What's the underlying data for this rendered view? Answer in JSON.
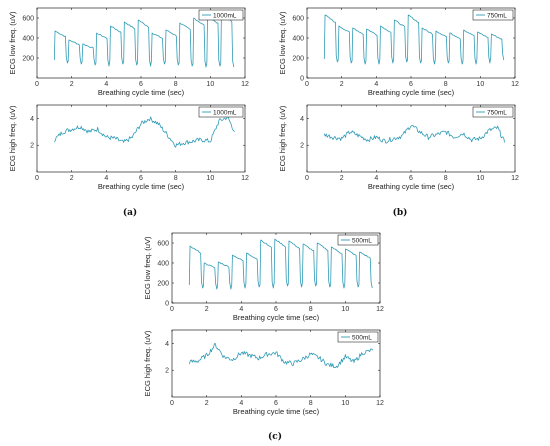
{
  "panels": [
    {
      "label": "(a)"
    },
    {
      "label": "(b)"
    },
    {
      "label": "(c)"
    }
  ],
  "chart_data": [
    {
      "type": "line",
      "panel": "(a)",
      "position": "top",
      "xlabel": "Breathing cycle time (sec)",
      "ylabel": "ECG low freq. (uV)",
      "xlim": [
        0,
        12
      ],
      "ylim": [
        0,
        700
      ],
      "xticks": [
        0,
        2,
        4,
        6,
        8,
        10,
        12
      ],
      "yticks": [
        200,
        400,
        600
      ],
      "legend": "top-right",
      "series": [
        {
          "name": "1000mL",
          "color": "#2f9bb6",
          "signal": "low",
          "x_start": 1.0,
          "x_end": 11.4,
          "cycle_peaks": [
            470,
            380,
            340,
            450,
            520,
            560,
            580,
            450,
            480,
            550,
            600,
            620,
            640
          ],
          "cycle_troughs": [
            150,
            140,
            130,
            120,
            140,
            130,
            120,
            140,
            130,
            120,
            110,
            120,
            110
          ]
        }
      ]
    },
    {
      "type": "line",
      "panel": "(a)",
      "position": "bottom",
      "xlabel": "Breathing cycle time (sec)",
      "ylabel": "ECG high freq. (uV)",
      "xlim": [
        0,
        12
      ],
      "ylim": [
        0,
        5
      ],
      "xticks": [
        0,
        2,
        4,
        6,
        8,
        10,
        12
      ],
      "yticks": [
        2,
        4
      ],
      "legend": "top-right",
      "series": [
        {
          "name": "1000mL",
          "color": "#2f9bb6",
          "signal": "high",
          "x_start": 1.0,
          "x_end": 11.4,
          "x_anchor": [
            1.0,
            1.5,
            2.0,
            2.5,
            3.0,
            3.5,
            4.0,
            4.5,
            5.0,
            5.5,
            6.0,
            6.5,
            7.0,
            7.5,
            8.0,
            8.5,
            9.0,
            9.5,
            10.0,
            10.5,
            11.0,
            11.4
          ],
          "y_anchor": [
            2.4,
            3.0,
            3.2,
            3.4,
            3.0,
            3.2,
            2.6,
            2.5,
            2.2,
            2.6,
            3.6,
            4.0,
            3.6,
            2.8,
            2.0,
            2.2,
            2.3,
            2.4,
            2.3,
            3.8,
            4.1,
            3.0
          ]
        }
      ]
    },
    {
      "type": "line",
      "panel": "(b)",
      "position": "top",
      "xlabel": "Breathing cycle time (sec)",
      "ylabel": "ECG low freq. (uV)",
      "xlim": [
        0,
        12
      ],
      "ylim": [
        0,
        700
      ],
      "xticks": [
        0,
        2,
        4,
        6,
        8,
        10,
        12
      ],
      "yticks": [
        0,
        200,
        400,
        600
      ],
      "legend": "top-right",
      "series": [
        {
          "name": "750mL",
          "color": "#2f9bb6",
          "signal": "low",
          "x_start": 1.0,
          "x_end": 11.4,
          "cycle_peaks": [
            630,
            520,
            500,
            490,
            520,
            580,
            630,
            500,
            470,
            450,
            480,
            460,
            440
          ],
          "cycle_troughs": [
            160,
            150,
            140,
            140,
            150,
            160,
            150,
            140,
            150,
            140,
            140,
            150,
            180
          ]
        }
      ]
    },
    {
      "type": "line",
      "panel": "(b)",
      "position": "bottom",
      "xlabel": "Breathing cycle time (sec)",
      "ylabel": "ECG high freq. (uV)",
      "xlim": [
        0,
        12
      ],
      "ylim": [
        0,
        5
      ],
      "xticks": [
        0,
        2,
        4,
        6,
        8,
        10,
        12
      ],
      "yticks": [
        2,
        4
      ],
      "legend": "top-right",
      "series": [
        {
          "name": "750mL",
          "color": "#2f9bb6",
          "signal": "high",
          "x_start": 1.0,
          "x_end": 11.4,
          "x_anchor": [
            1.0,
            1.5,
            2.0,
            2.5,
            3.0,
            3.5,
            4.0,
            4.5,
            5.0,
            5.5,
            6.0,
            6.5,
            7.0,
            7.5,
            8.0,
            8.5,
            9.0,
            9.5,
            10.0,
            10.5,
            11.0,
            11.4
          ],
          "y_anchor": [
            2.8,
            2.6,
            2.5,
            3.0,
            2.7,
            2.4,
            2.6,
            2.3,
            2.5,
            2.7,
            3.5,
            3.0,
            2.6,
            2.8,
            3.0,
            2.6,
            2.9,
            2.4,
            2.5,
            3.1,
            3.3,
            2.2
          ]
        }
      ]
    },
    {
      "type": "line",
      "panel": "(c)",
      "position": "top",
      "xlabel": "Breathing cycle time (sec)",
      "ylabel": "ECG low freq. (uV)",
      "xlim": [
        0,
        12
      ],
      "ylim": [
        0,
        700
      ],
      "xticks": [
        0,
        2,
        4,
        6,
        8,
        10,
        12
      ],
      "yticks": [
        0,
        200,
        400,
        600
      ],
      "legend": "top-right",
      "series": [
        {
          "name": "500mL",
          "color": "#2f9bb6",
          "signal": "low",
          "x_start": 1.0,
          "x_end": 11.6,
          "cycle_peaks": [
            570,
            400,
            410,
            480,
            500,
            630,
            640,
            620,
            590,
            600,
            560,
            540,
            510
          ],
          "cycle_troughs": [
            150,
            140,
            140,
            150,
            160,
            150,
            170,
            160,
            170,
            160,
            150,
            160,
            150
          ]
        }
      ]
    },
    {
      "type": "line",
      "panel": "(c)",
      "position": "bottom",
      "xlabel": "Breathing cycle time (sec)",
      "ylabel": "ECG high freq. (uV)",
      "xlim": [
        0,
        12
      ],
      "ylim": [
        0,
        5
      ],
      "xticks": [
        0,
        2,
        4,
        6,
        8,
        10,
        12
      ],
      "yticks": [
        2,
        4
      ],
      "legend": "top-right",
      "series": [
        {
          "name": "500mL",
          "color": "#2f9bb6",
          "signal": "high",
          "x_start": 1.0,
          "x_end": 11.6,
          "x_anchor": [
            1.0,
            1.5,
            2.0,
            2.5,
            3.0,
            3.5,
            4.0,
            4.5,
            5.0,
            5.5,
            6.0,
            6.5,
            7.0,
            7.5,
            8.0,
            8.5,
            9.0,
            9.5,
            10.0,
            10.5,
            11.0,
            11.6
          ],
          "y_anchor": [
            2.6,
            2.7,
            3.1,
            3.9,
            3.0,
            2.8,
            3.3,
            3.1,
            2.9,
            3.2,
            3.3,
            2.6,
            2.5,
            2.8,
            3.2,
            2.9,
            2.4,
            2.3,
            3.0,
            2.6,
            3.3,
            3.5
          ]
        }
      ]
    }
  ]
}
